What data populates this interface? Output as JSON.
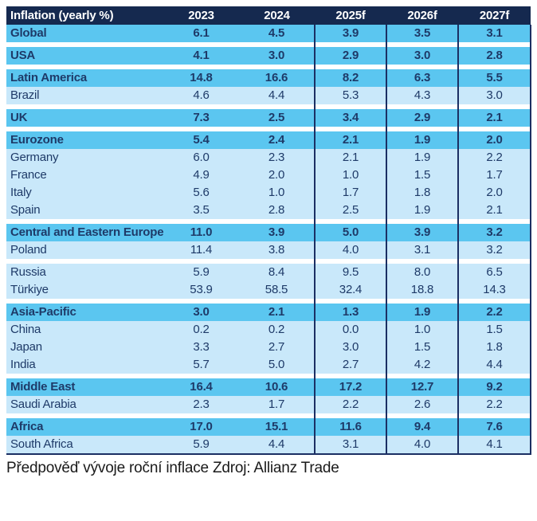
{
  "chart_data": {
    "type": "table",
    "title": "Inflation (yearly %)",
    "columns": [
      "2023",
      "2024",
      "2025f",
      "2026f",
      "2027f"
    ],
    "groups": [
      [
        {
          "label": "Global",
          "bold": true,
          "values": [
            "6.1",
            "4.5",
            "3.9",
            "3.5",
            "3.1"
          ]
        }
      ],
      [
        {
          "label": "USA",
          "bold": true,
          "values": [
            "4.1",
            "3.0",
            "2.9",
            "3.0",
            "2.8"
          ]
        }
      ],
      [
        {
          "label": "Latin America",
          "bold": true,
          "values": [
            "14.8",
            "16.6",
            "8.2",
            "6.3",
            "5.5"
          ]
        },
        {
          "label": "Brazil",
          "bold": false,
          "values": [
            "4.6",
            "4.4",
            "5.3",
            "4.3",
            "3.0"
          ]
        }
      ],
      [
        {
          "label": "UK",
          "bold": true,
          "values": [
            "7.3",
            "2.5",
            "3.4",
            "2.9",
            "2.1"
          ]
        }
      ],
      [
        {
          "label": "Eurozone",
          "bold": true,
          "values": [
            "5.4",
            "2.4",
            "2.1",
            "1.9",
            "2.0"
          ]
        },
        {
          "label": "Germany",
          "bold": false,
          "values": [
            "6.0",
            "2.3",
            "2.1",
            "1.9",
            "2.2"
          ]
        },
        {
          "label": "France",
          "bold": false,
          "values": [
            "4.9",
            "2.0",
            "1.0",
            "1.5",
            "1.7"
          ]
        },
        {
          "label": "Italy",
          "bold": false,
          "values": [
            "5.6",
            "1.0",
            "1.7",
            "1.8",
            "2.0"
          ]
        },
        {
          "label": "Spain",
          "bold": false,
          "values": [
            "3.5",
            "2.8",
            "2.5",
            "1.9",
            "2.1"
          ]
        }
      ],
      [
        {
          "label": "Central and Eastern Europe",
          "bold": true,
          "values": [
            "11.0",
            "3.9",
            "5.0",
            "3.9",
            "3.2"
          ]
        },
        {
          "label": "Poland",
          "bold": false,
          "values": [
            "11.4",
            "3.8",
            "4.0",
            "3.1",
            "3.2"
          ]
        }
      ],
      [
        {
          "label": "Russia",
          "bold": false,
          "values": [
            "5.9",
            "8.4",
            "9.5",
            "8.0",
            "6.5"
          ]
        },
        {
          "label": "Türkiye",
          "bold": false,
          "values": [
            "53.9",
            "58.5",
            "32.4",
            "18.8",
            "14.3"
          ]
        }
      ],
      [
        {
          "label": "Asia-Pacific",
          "bold": true,
          "values": [
            "3.0",
            "2.1",
            "1.3",
            "1.9",
            "2.2"
          ]
        },
        {
          "label": "China",
          "bold": false,
          "values": [
            "0.2",
            "0.2",
            "0.0",
            "1.0",
            "1.5"
          ]
        },
        {
          "label": "Japan",
          "bold": false,
          "values": [
            "3.3",
            "2.7",
            "3.0",
            "1.5",
            "1.8"
          ]
        },
        {
          "label": "India",
          "bold": false,
          "values": [
            "5.7",
            "5.0",
            "2.7",
            "4.2",
            "4.4"
          ]
        }
      ],
      [
        {
          "label": "Middle East",
          "bold": true,
          "values": [
            "16.4",
            "10.6",
            "17.2",
            "12.7",
            "9.2"
          ]
        },
        {
          "label": "Saudi Arabia",
          "bold": false,
          "values": [
            "2.3",
            "1.7",
            "2.2",
            "2.6",
            "2.2"
          ]
        }
      ],
      [
        {
          "label": "Africa",
          "bold": true,
          "values": [
            "17.0",
            "15.1",
            "11.6",
            "9.4",
            "7.6"
          ]
        },
        {
          "label": "South Africa",
          "bold": false,
          "values": [
            "5.9",
            "4.4",
            "3.1",
            "4.0",
            "4.1"
          ]
        }
      ]
    ],
    "caption": "Předpověď vývoje roční inflace Zdroj: Allianz Trade"
  },
  "colors": {
    "header_bg": "#15294F",
    "section_bg": "#5BC6F0",
    "sub_bg": "#C9E8FA",
    "grid_line": "#1B2F63",
    "cell_text": "#1E3A68",
    "header_text": "#FFFFFF",
    "caption_text": "#1A1A1A"
  }
}
